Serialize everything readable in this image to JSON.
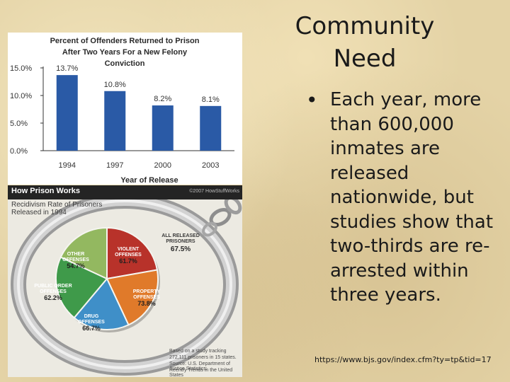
{
  "slide": {
    "title_line1": "Community",
    "title_line2": "Need",
    "bullet_text": "Each year, more than 600,000 inmates are released nationwide, but studies show that two-thirds are re-arrested within three years.",
    "source_url": "https://www.bjs.gov/index.cfm?ty=tp&tid=17"
  },
  "chart_data": {
    "type": "bar",
    "title": "Percent of Offenders Returned to Prison After Two Years For a New Felony Conviction",
    "title_lines": [
      "Percent of Offenders Returned to Prison",
      "After Two Years For a New Felony",
      "Conviction"
    ],
    "xlabel": "Year of Release",
    "ylabel": "",
    "categories": [
      "1994",
      "1997",
      "2000",
      "2003"
    ],
    "values": [
      13.7,
      10.8,
      8.2,
      8.1
    ],
    "value_labels": [
      "13.7%",
      "10.8%",
      "8.2%",
      "8.1%"
    ],
    "y_ticks": [
      "0.0%",
      "5.0%",
      "10.0%",
      "15.0%"
    ],
    "y_tick_values": [
      0,
      5,
      10,
      15
    ],
    "ylim": [
      0,
      15
    ],
    "grid": false,
    "bar_color": "#2a5aa6"
  },
  "infographic": {
    "header_title": "How Prison Works",
    "copyright": "©2007 HowStuffWorks",
    "subtitle_line1": "Recidivism Rate of Prisoners",
    "subtitle_line2": "Released in 1994",
    "all_released_label_line1": "ALL RELEASED",
    "all_released_label_line2": "PRISONERS",
    "all_released_value": "67.5%",
    "pie": [
      {
        "label_line1": "VIOLENT",
        "label_line2": "OFFENSES",
        "value_label": "61.7%",
        "value": 61.7,
        "color": "#b8322a"
      },
      {
        "label_line1": "PROPERTY",
        "label_line2": "OFFENSES",
        "value_label": "73.8%",
        "value": 73.8,
        "color": "#e07a2a"
      },
      {
        "label_line1": "DRUG",
        "label_line2": "OFFENSES",
        "value_label": "66.7%",
        "value": 66.7,
        "color": "#3f8fc8"
      },
      {
        "label_line1": "PUBLIC ORDER",
        "label_line2": "OFFENSES",
        "value_label": "62.2%",
        "value": 62.2,
        "color": "#3f9a4a"
      },
      {
        "label_line1": "OTHER",
        "label_line2": "OFFENSES",
        "value_label": "54.7%",
        "value": 54.7,
        "color": "#93b860"
      }
    ],
    "note_lines": [
      "Based on a study tracking",
      "272,111 prisoners in 15 states.",
      "Source: U.S. Department of Justice Statistics:",
      "Reentry Trends in the United States"
    ]
  }
}
